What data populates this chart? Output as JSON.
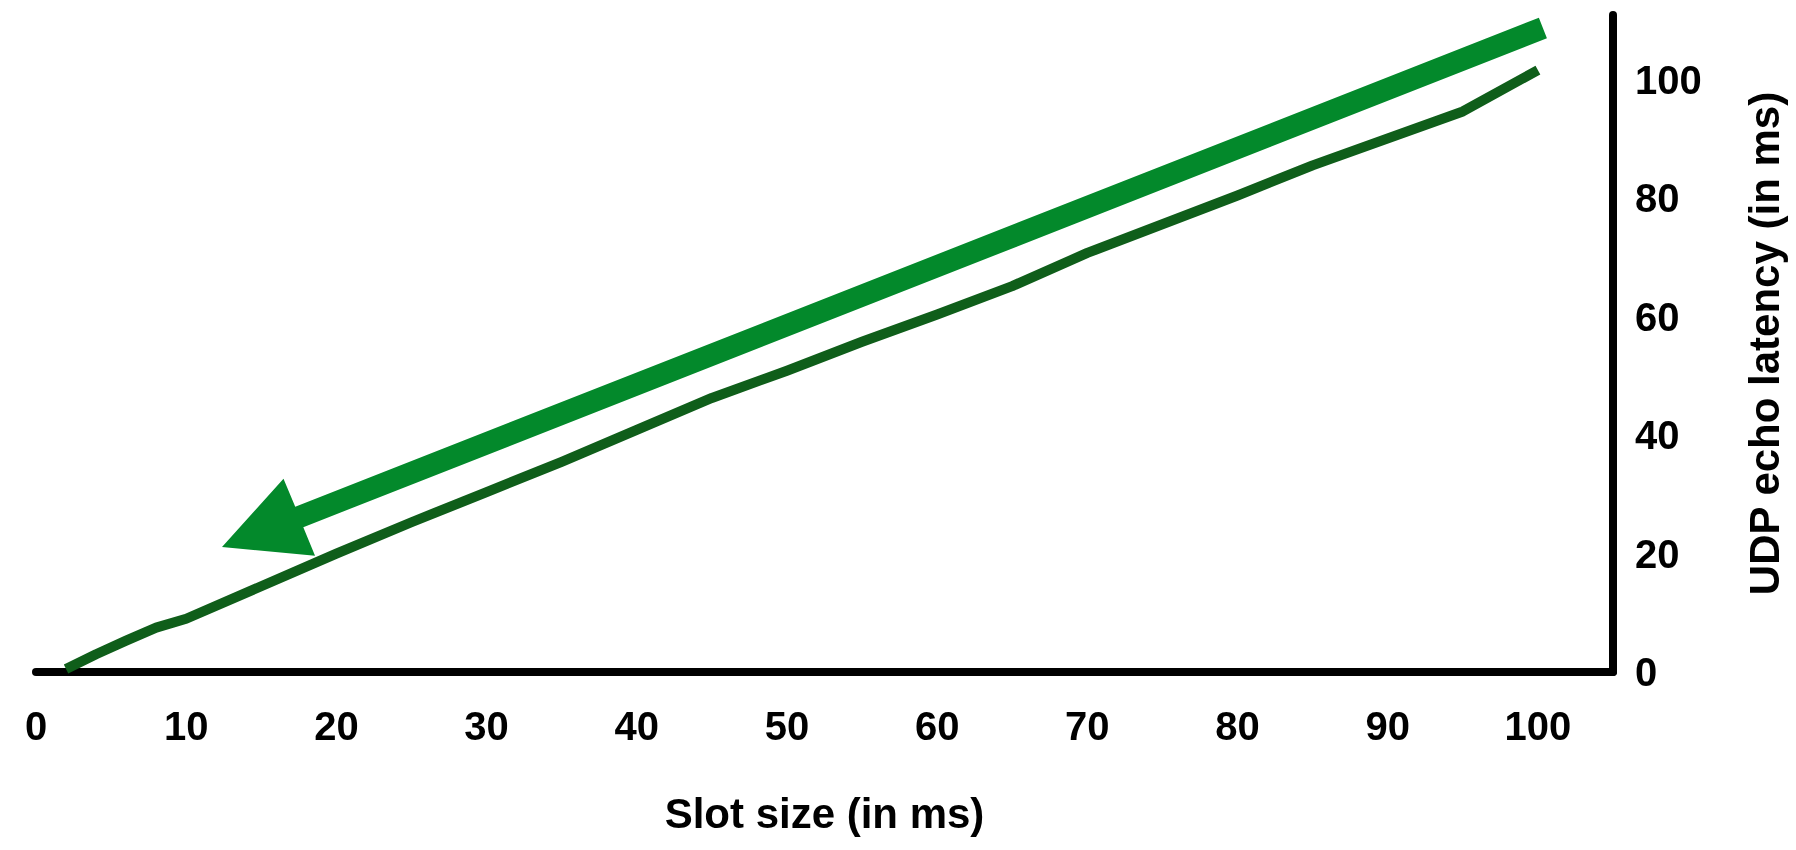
{
  "chart_data": {
    "type": "line",
    "xlabel": "Slot size (in ms)",
    "ylabel": "UDP echo latency (in ms)",
    "x": [
      2,
      4,
      6,
      8,
      10,
      20,
      25,
      30,
      35,
      40,
      45,
      50,
      55,
      60,
      65,
      70,
      80,
      85,
      95,
      100
    ],
    "series": [
      {
        "color": "#0f5e1a",
        "values": [
          0.5,
          3,
          5.3,
          7.5,
          9,
          20,
          25.3,
          30.4,
          35.5,
          40.9,
          46.3,
          50.9,
          55.8,
          60.4,
          65.2,
          70.8,
          80.5,
          85.6,
          94.7,
          101.7
        ]
      }
    ],
    "xlim": [
      0,
      105
    ],
    "xticks": [
      0,
      10,
      20,
      30,
      40,
      50,
      60,
      70,
      80,
      90,
      100
    ],
    "ylim": [
      0,
      111
    ],
    "yticks": [
      0,
      20,
      40,
      60,
      80,
      100
    ],
    "grid": false
  }
}
